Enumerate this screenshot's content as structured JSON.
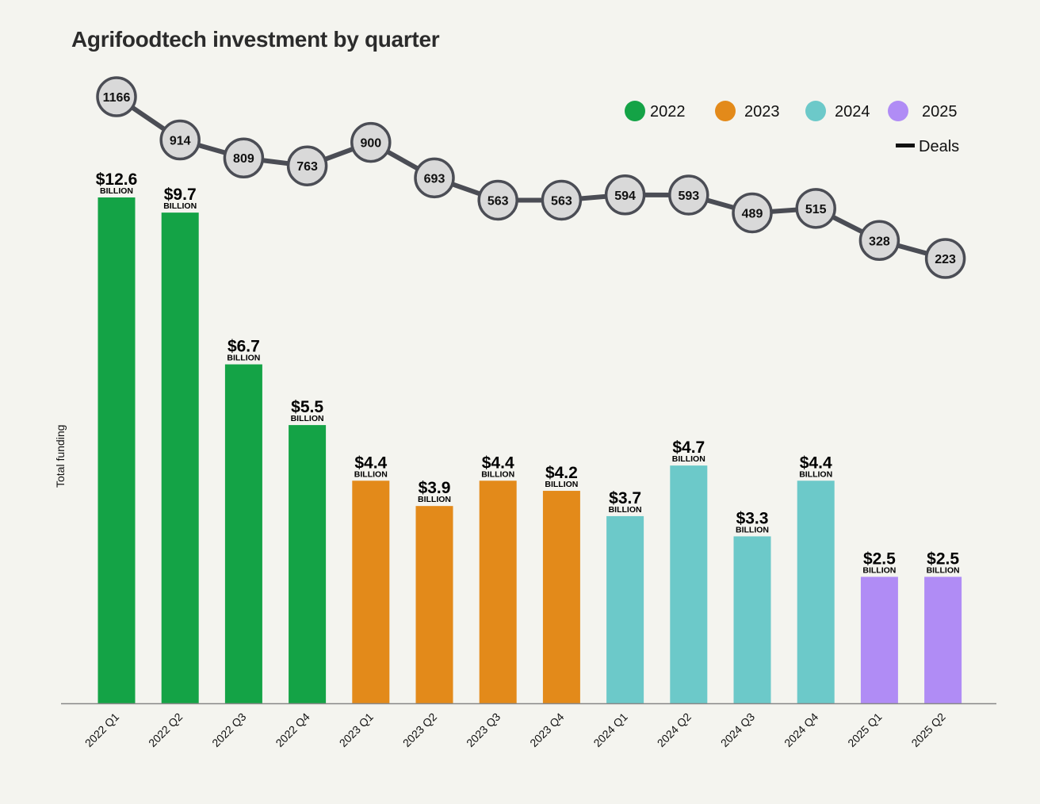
{
  "chart_data": {
    "type": "bar",
    "title": "Agrifoodtech investment by quarter",
    "ylabel": "Total funding",
    "xlabel": "",
    "ylim": [
      0,
      10
    ],
    "grid": false,
    "legend_position": "top-right",
    "value_unit_label": "BILLION",
    "categories": [
      "2022 Q1",
      "2022 Q2",
      "2022 Q3",
      "2022 Q4",
      "2023 Q1",
      "2023 Q2",
      "2023 Q3",
      "2023 Q4",
      "2024 Q1",
      "2024 Q2",
      "2024 Q3",
      "2024 Q4",
      "2025 Q1",
      "2025 Q2"
    ],
    "years": [
      "2022",
      "2022",
      "2022",
      "2022",
      "2023",
      "2023",
      "2023",
      "2023",
      "2024",
      "2024",
      "2024",
      "2024",
      "2025",
      "2025"
    ],
    "funding_billion": [
      12.6,
      9.7,
      6.7,
      5.5,
      4.4,
      3.9,
      4.4,
      4.2,
      3.7,
      4.7,
      3.3,
      4.4,
      2.5,
      2.5
    ],
    "funding_labels": [
      "$12.6",
      "$9.7",
      "$6.7",
      "$5.5",
      "$4.4",
      "$3.9",
      "$4.4",
      "$4.2",
      "$3.7",
      "$4.7",
      "$3.3",
      "$4.4",
      "$2.5",
      "$2.5"
    ],
    "deals": {
      "name": "Deals",
      "type": "line",
      "values": [
        1166,
        914,
        809,
        763,
        900,
        693,
        563,
        563,
        594,
        593,
        489,
        515,
        328,
        223
      ]
    },
    "legend": [
      {
        "label": "2022",
        "color": "#14a346"
      },
      {
        "label": "2023",
        "color": "#e38a1a"
      },
      {
        "label": "2024",
        "color": "#6cc9c9"
      },
      {
        "label": "2025",
        "color": "#b08cf5"
      }
    ],
    "deals_line_color": "#4b4d55",
    "deals_marker_fill": "#d9d9d9"
  }
}
